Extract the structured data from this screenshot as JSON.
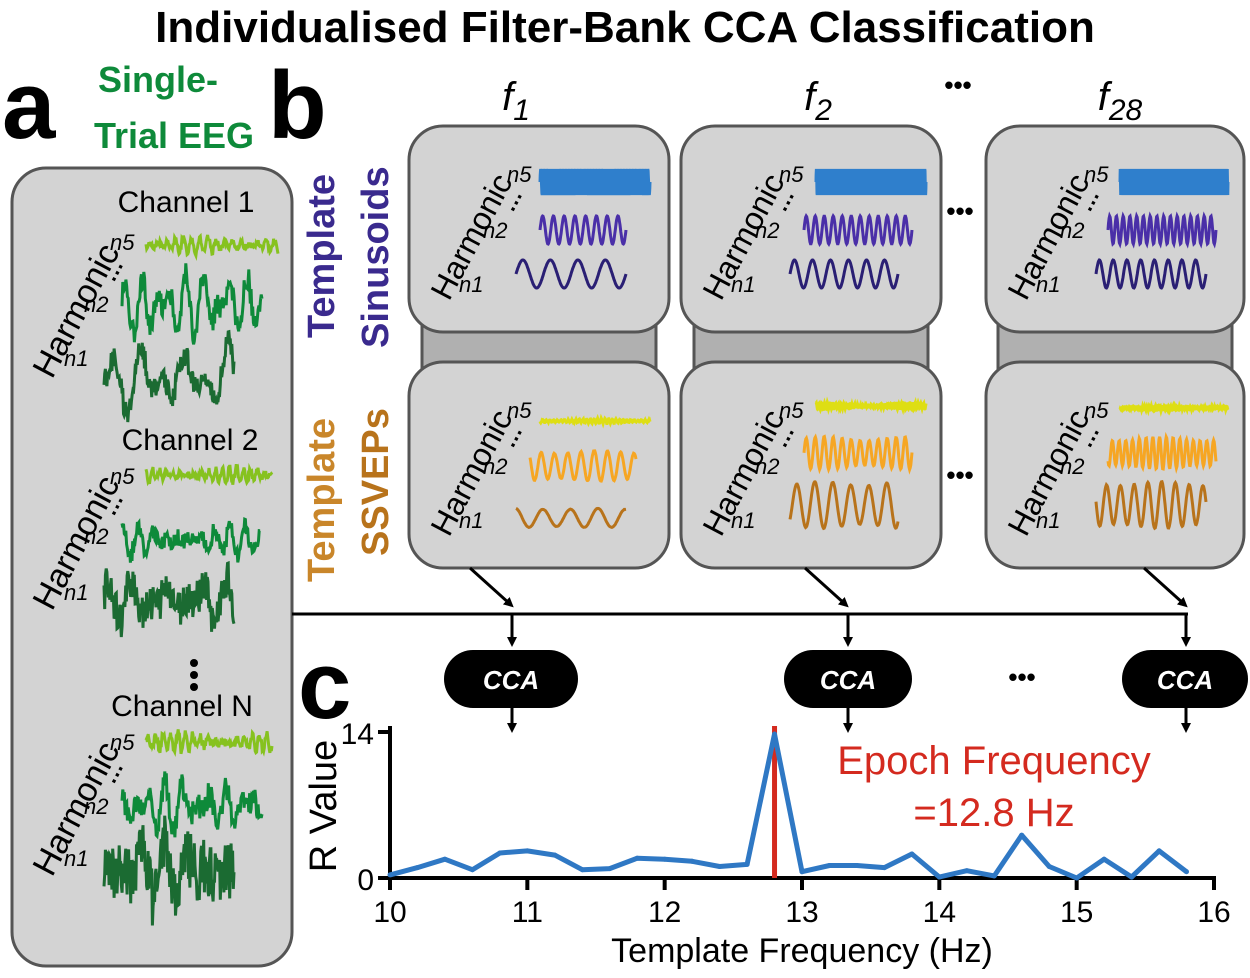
{
  "title": "Individualised Filter-Bank CCA Classification",
  "panels": {
    "a": "a",
    "b": "b",
    "c": "c"
  },
  "colors": {
    "eeg_green": "#0e8a3a",
    "eeg_dark_green": "#1b6b32",
    "eeg_light_green": "#86c21f",
    "sin_light_blue": "#2f7fcc",
    "sin_purple": "#4a2fa8",
    "sin_dark_purple": "#2a1f74",
    "ssvep_yellow": "#dede14",
    "ssvep_orange": "#f6a623",
    "ssvep_brown": "#b8731b",
    "red": "#d42a1f",
    "plot_blue": "#2f78c4",
    "box_fill": "#d3d3d3"
  },
  "panel_a": {
    "heading_line1": "Single-",
    "heading_line2": "Trial EEG",
    "channels": [
      "Channel 1",
      "Channel 2",
      "Channel N"
    ],
    "vdots": "⋮",
    "harmonic_label": "Harmonic",
    "harmonics": [
      "n5",
      "n2",
      "n1"
    ],
    "ellipsis": "…"
  },
  "panel_b": {
    "frequencies": [
      {
        "base": "f",
        "sub": "1"
      },
      {
        "base": "f",
        "sub": "2"
      },
      {
        "base": "f",
        "sub": "28"
      }
    ],
    "ellipsis": "•••",
    "row_labels": {
      "sinusoids_line1": "Template",
      "sinusoids_line2": "Sinusoids",
      "ssveps_line1": "Template",
      "ssveps_line2": "SSVEPs"
    },
    "harmonic_label": "Harmonic",
    "harmonics": [
      "n5",
      "n2",
      "n1"
    ],
    "dots": "…"
  },
  "cca": {
    "label": "CCA",
    "ellipsis": "•••"
  },
  "chart_data": {
    "type": "line",
    "xlabel": "Template Frequency (Hz)",
    "ylabel": "R Value",
    "xlim": [
      10,
      16
    ],
    "ylim": [
      0,
      14
    ],
    "xticks": [
      "10",
      "11",
      "12",
      "13",
      "14",
      "15",
      "16"
    ],
    "yticks": [
      "0",
      "14"
    ],
    "x": [
      10.0,
      10.2,
      10.4,
      10.6,
      10.8,
      11.0,
      11.2,
      11.4,
      11.6,
      11.8,
      12.0,
      12.2,
      12.4,
      12.6,
      12.8,
      13.0,
      13.2,
      13.4,
      13.6,
      13.8,
      14.0,
      14.2,
      14.4,
      14.6,
      14.8,
      15.0,
      15.2,
      15.4,
      15.6,
      15.8
    ],
    "y": [
      0.3,
      1.0,
      1.8,
      0.8,
      2.4,
      2.6,
      2.2,
      0.8,
      0.9,
      1.9,
      1.8,
      1.6,
      1.1,
      1.3,
      13.8,
      0.6,
      1.2,
      1.2,
      1.0,
      2.3,
      0.1,
      0.7,
      0.2,
      4.1,
      1.1,
      0.0,
      1.8,
      0.1,
      2.6,
      0.6
    ],
    "annotation_line1": "Epoch Frequency",
    "annotation_line2": "=12.8 Hz",
    "marker_x": 12.8
  }
}
